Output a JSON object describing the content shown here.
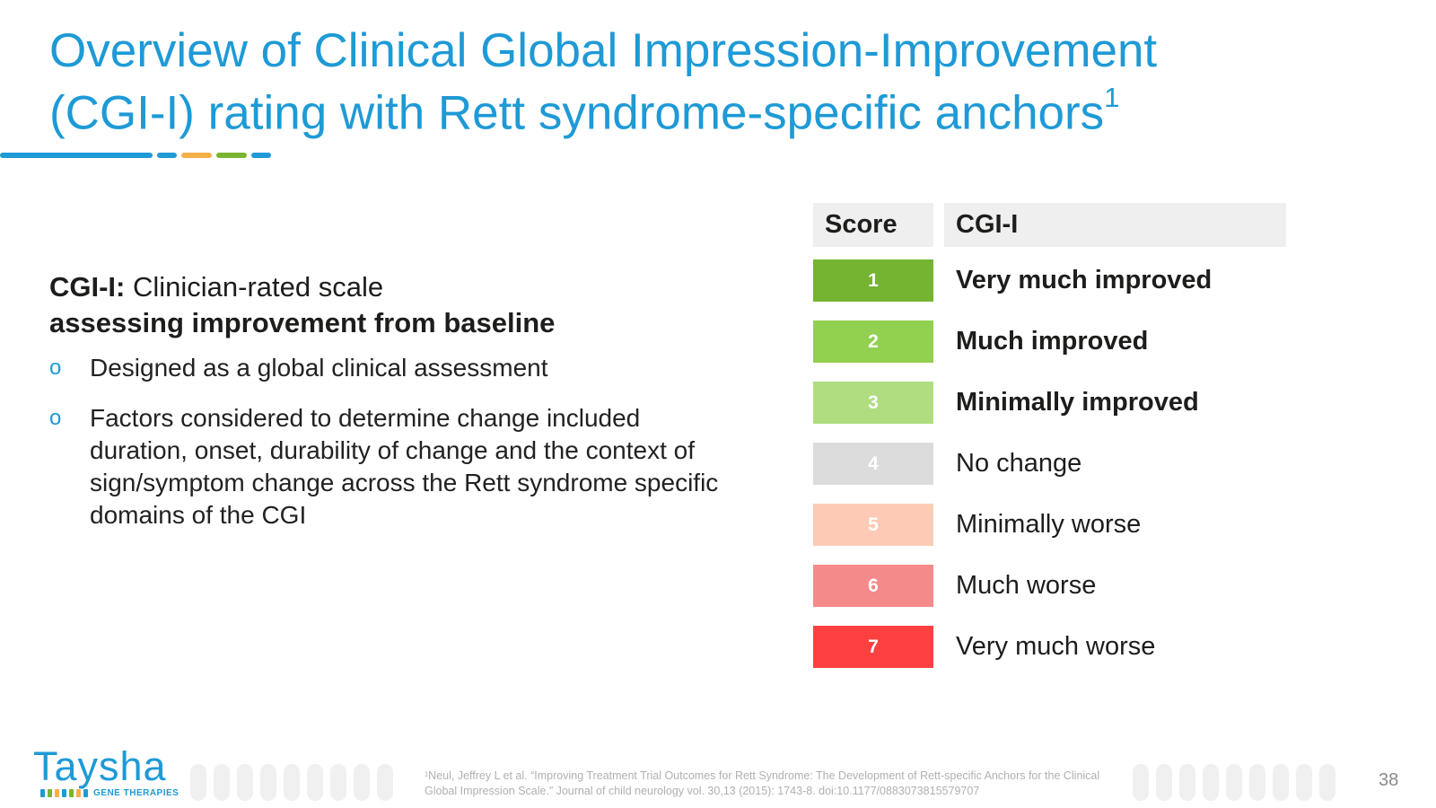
{
  "slide": {
    "title_line1": "Overview of Clinical Global Impression-Improvement",
    "title_line2": "(CGI-I) rating with Rett syndrome-specific anchors",
    "title_sup": "1",
    "accent_colors": [
      "#1e9ad6",
      "#1e9ad6",
      "#f5b04a",
      "#7ab531",
      "#1e9ad6"
    ]
  },
  "intro": {
    "term": "CGI-I:",
    "text": " Clinician-rated scale",
    "bold_text": "assessing improvement from baseline"
  },
  "bullets": [
    {
      "mark": "o",
      "text": "Designed as a global clinical assessment"
    },
    {
      "mark": "o",
      "text": "Factors considered to determine change included duration, onset, durability of change and the context of sign/symptom change across the Rett syndrome specific domains of the CGI"
    }
  ],
  "table": {
    "header_score": "Score",
    "header_cgi": "CGI-I",
    "rows": [
      {
        "score": "1",
        "label": "Very much improved",
        "color": "#74b431",
        "bold": true
      },
      {
        "score": "2",
        "label": "Much improved",
        "color": "#92d04f",
        "bold": true
      },
      {
        "score": "3",
        "label": "Minimally improved",
        "color": "#b0dd80",
        "bold": true
      },
      {
        "score": "4",
        "label": "No change",
        "color": "#dcdcdc",
        "bold": false
      },
      {
        "score": "5",
        "label": "Minimally worse",
        "color": "#fdcab5",
        "bold": false
      },
      {
        "score": "6",
        "label": "Much worse",
        "color": "#f48a8a",
        "bold": false
      },
      {
        "score": "7",
        "label": "Very much worse",
        "color": "#fe4040",
        "bold": false
      }
    ]
  },
  "footer": {
    "logo_name": "Taysha",
    "logo_sub": "GENE THERAPIES",
    "logo_bar_colors": [
      "#1e9ad6",
      "#7ab531",
      "#f5b04a",
      "#1e9ad6",
      "#7ab531",
      "#f5b04a",
      "#1e9ad6"
    ],
    "footnote": "¹Neul, Jeffrey L et al. “Improving Treatment Trial Outcomes for Rett Syndrome: The Development of Rett-specific Anchors for the Clinical Global Impression Scale.” Journal of child neurology vol. 30,13 (2015): 1743-8. doi:10.1177/0883073815579707",
    "page_number": "38"
  }
}
